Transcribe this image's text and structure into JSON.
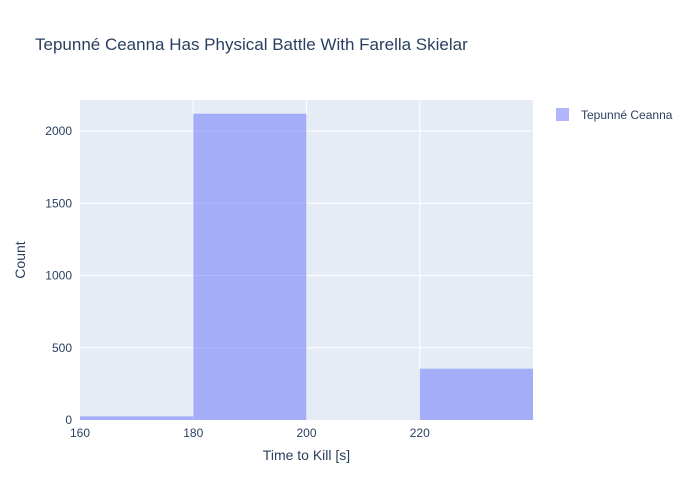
{
  "chart_data": {
    "type": "bar",
    "subtype": "histogram",
    "title": "Tepunné Ceanna Has Physical Battle With Farella Skielar",
    "xlabel": "Time to Kill [s]",
    "ylabel": "Count",
    "xlim": [
      160,
      240
    ],
    "ylim": [
      0,
      2215
    ],
    "x_ticks": [
      160,
      180,
      200,
      220
    ],
    "y_ticks": [
      0,
      500,
      1000,
      1500,
      2000
    ],
    "grid": true,
    "legend": "top-right",
    "series": [
      {
        "name": "Tepunné Ceanna",
        "color": "#636efa",
        "opacity": 0.5,
        "bins": [
          {
            "x0": 160,
            "x1": 180,
            "count": 25
          },
          {
            "x0": 180,
            "x1": 200,
            "count": 2120
          },
          {
            "x0": 200,
            "x1": 220,
            "count": 0
          },
          {
            "x0": 220,
            "x1": 240,
            "count": 355
          }
        ]
      }
    ]
  }
}
